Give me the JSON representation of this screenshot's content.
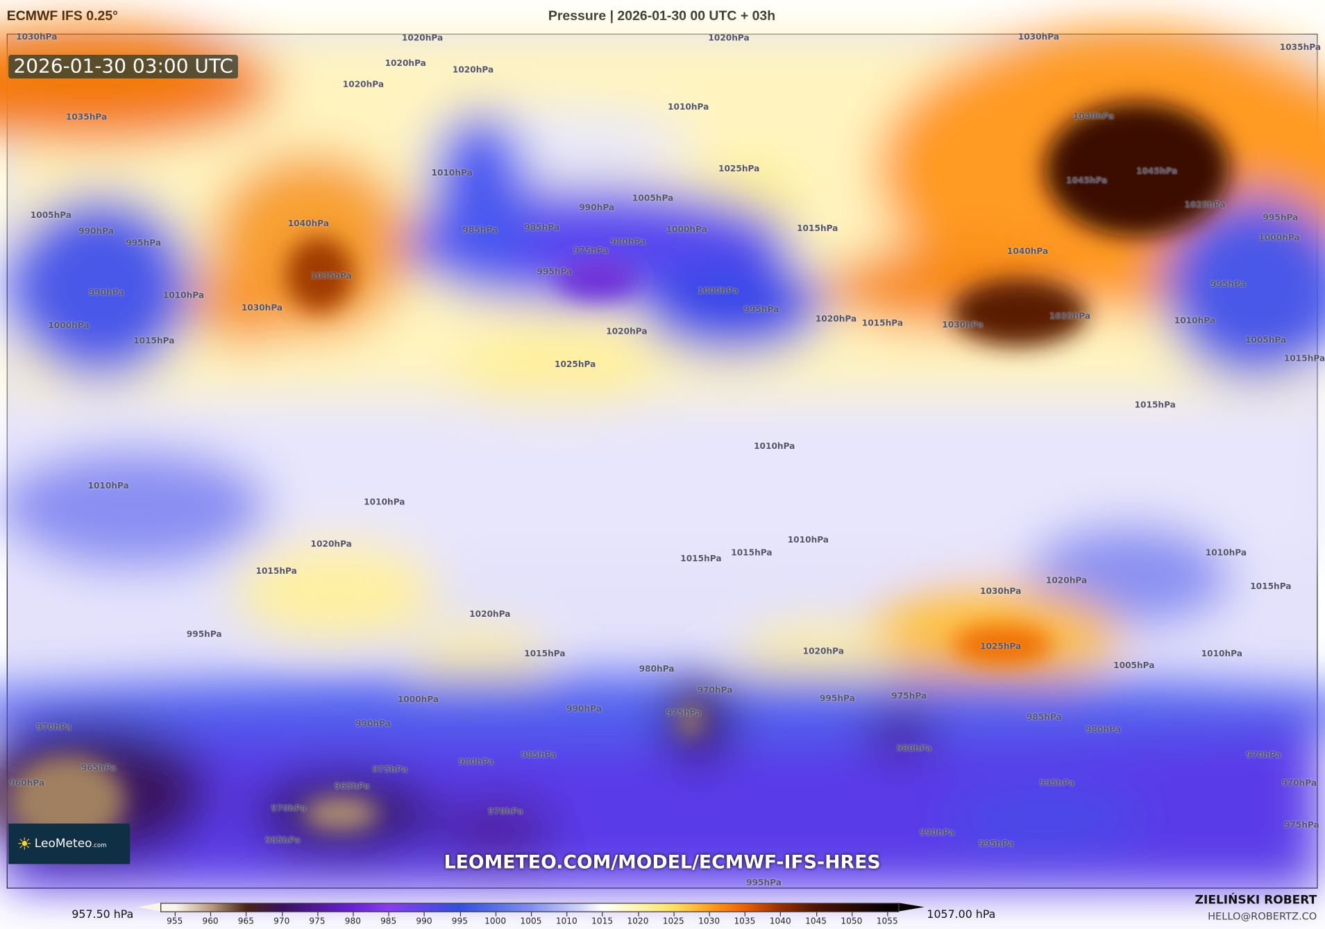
{
  "header": {
    "model": "ECMWF IFS 0.25°",
    "title": "Pressure | 2026-01-30 00 UTC + 03h"
  },
  "map": {
    "valid_time": "2026-01-30 03:00 UTC",
    "logo_text": "LeoMeteo",
    "logo_suffix": ".com",
    "url": "LEOMETEO.COM/MODEL/ECMWF-IFS-HRES",
    "contour_labels": [
      "1030hPa",
      "1020hPa",
      "1020hPa",
      "1030hPa",
      "1035hPa",
      "1020hPa",
      "1020hPa",
      "1020hPa",
      "1035hPa",
      "1010hPa",
      "1040hPa",
      "1025hPa",
      "1045hPa",
      "1045hPa",
      "1025hPa",
      "1010hPa",
      "1005hPa",
      "990hPa",
      "985hPa",
      "985hPa",
      "975hPa",
      "980hPa",
      "1000hPa",
      "1015hPa",
      "1005hPa",
      "990hPa",
      "995hPa",
      "1040hPa",
      "1035hPa",
      "1030hPa",
      "990hPa",
      "1000hPa",
      "1015hPa",
      "1010hPa",
      "995hPa",
      "1000hPa",
      "995hPa",
      "1040hPa",
      "1030hPa",
      "1035hPa",
      "1020hPa",
      "1015hPa",
      "1020hPa",
      "1025hPa",
      "995hPa",
      "1000hPa",
      "995hPa",
      "1010hPa",
      "1005hPa",
      "1015hPa",
      "1015hPa",
      "1010hPa",
      "1010hPa",
      "1010hPa",
      "1020hPa",
      "1015hPa",
      "1015hPa",
      "1015hPa",
      "1010hPa",
      "1010hPa",
      "1020hPa",
      "1015hPa",
      "1030hPa",
      "1020hPa",
      "995hPa",
      "1020hPa",
      "1025hPa",
      "1015hPa",
      "1010hPa",
      "1005hPa",
      "980hPa",
      "970hPa",
      "975hPa",
      "990hPa",
      "1000hPa",
      "995hPa",
      "975hPa",
      "985hPa",
      "980hPa",
      "990hPa",
      "970hPa",
      "965hPa",
      "985hPa",
      "980hPa",
      "975hPa",
      "980hPa",
      "970hPa",
      "995hPa",
      "970hPa",
      "960hPa",
      "970hPa",
      "965hPa",
      "970hPa",
      "975hPa",
      "990hPa",
      "995hPa",
      "985hPa",
      "995hPa"
    ]
  },
  "colorbar": {
    "min_label": "957.50 hPa",
    "max_label": "1057.00 hPa",
    "unit": "hPa",
    "ticks": [
      "955",
      "960",
      "965",
      "970",
      "975",
      "980",
      "985",
      "990",
      "995",
      "1000",
      "1005",
      "1010",
      "1015",
      "1020",
      "1025",
      "1030",
      "1035",
      "1040",
      "1045",
      "1050",
      "1055"
    ],
    "colors": {
      "955": "#fbf6ea",
      "960": "#b89a7a",
      "965": "#4a2414",
      "970": "#3a1060",
      "980": "#6a20d8",
      "985": "#8a3cf0",
      "995": "#3050e0",
      "1005": "#8090f0",
      "1012": "#d0d4fa",
      "1015": "#ffffff",
      "1020": "#fff6b0",
      "1025": "#ffe060",
      "1030": "#ffa020",
      "1035": "#f06000",
      "1040": "#9a3000",
      "1045": "#501400",
      "1055": "#080000"
    }
  },
  "credits": {
    "author": "ZIELIŃSKI ROBERT",
    "email": "HELLO@ROBERTZ.CO"
  }
}
